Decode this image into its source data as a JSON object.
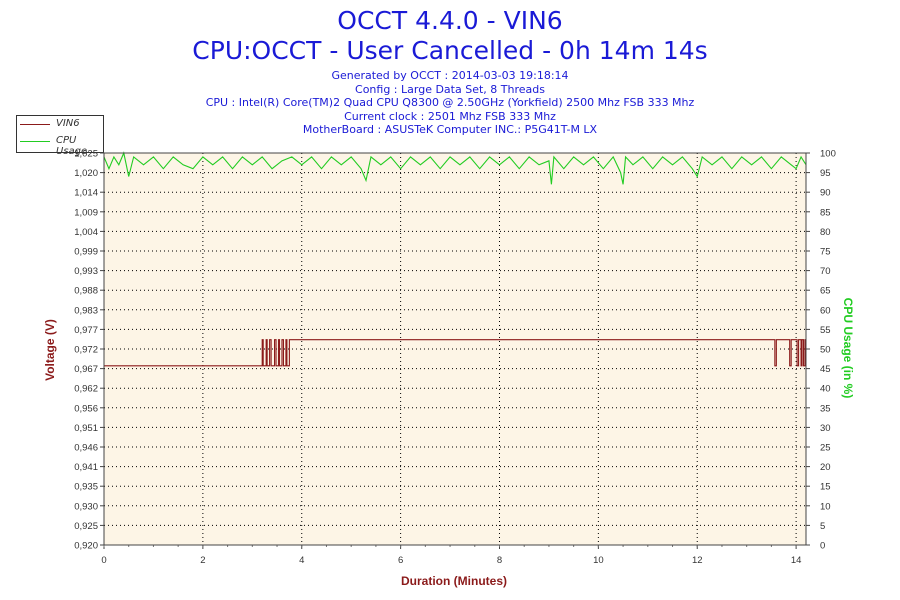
{
  "header": {
    "title": "OCCT 4.4.0 - VIN6",
    "subtitle": "CPU:OCCT - User Cancelled - 0h 14m 14s",
    "info_lines": [
      "Generated by OCCT : 2014-03-03 19:18:14",
      "Config : Large Data Set, 8 Threads",
      "CPU : Intel(R) Core(TM)2 Quad CPU Q8300 @ 2.50GHz (Yorkfield) 2500 Mhz FSB 333 Mhz",
      "Current clock : 2501 Mhz FSB 333 Mhz",
      "MotherBoard : ASUSTeK Computer INC.: P5G41T-M LX"
    ]
  },
  "colors": {
    "voltage": "#8b1a1a",
    "cpu": "#22cc22",
    "plot_bg": "#fdf5e6",
    "grid": "#000000",
    "title": "#1a1ad6"
  },
  "chart_data": {
    "type": "line",
    "xlabel": "Duration (Minutes)",
    "ylabel_left": "Voltage (V)",
    "ylabel_right": "CPU Usage (in %)",
    "xlim": [
      0,
      14.2
    ],
    "x_ticks": [
      "0",
      "2",
      "4",
      "6",
      "8",
      "10",
      "12",
      "14"
    ],
    "y_left_ticks": [
      "0,920",
      "0,925",
      "0,930",
      "0,935",
      "0,941",
      "0,946",
      "0,951",
      "0,956",
      "0,962",
      "0,967",
      "0,972",
      "0,977",
      "0,983",
      "0,988",
      "0,993",
      "0,999",
      "1,004",
      "1,009",
      "1,014",
      "1,020",
      "1,025"
    ],
    "ylim_left": [
      0.92,
      1.025
    ],
    "y_right_ticks": [
      "0",
      "5",
      "10",
      "15",
      "20",
      "25",
      "30",
      "35",
      "40",
      "45",
      "50",
      "55",
      "60",
      "65",
      "70",
      "75",
      "80",
      "85",
      "90",
      "95",
      "100"
    ],
    "ylim_right": [
      0,
      100
    ],
    "legend": [
      "VIN6",
      "CPU Usage"
    ],
    "series": [
      {
        "name": "VIN6",
        "axis": "left",
        "points": [
          [
            0,
            0.968
          ],
          [
            3.15,
            0.968
          ],
          [
            3.2,
            0.975
          ],
          [
            3.22,
            0.968
          ],
          [
            3.28,
            0.975
          ],
          [
            3.3,
            0.968
          ],
          [
            3.35,
            0.975
          ],
          [
            3.38,
            0.968
          ],
          [
            3.45,
            0.975
          ],
          [
            3.48,
            0.968
          ],
          [
            3.53,
            0.975
          ],
          [
            3.55,
            0.968
          ],
          [
            3.6,
            0.975
          ],
          [
            3.63,
            0.968
          ],
          [
            3.68,
            0.975
          ],
          [
            3.7,
            0.968
          ],
          [
            3.75,
            0.975
          ],
          [
            3.78,
            0.975
          ],
          [
            13.55,
            0.975
          ],
          [
            13.57,
            0.968
          ],
          [
            13.6,
            0.975
          ],
          [
            13.85,
            0.975
          ],
          [
            13.87,
            0.968
          ],
          [
            13.9,
            0.975
          ],
          [
            14.0,
            0.975
          ],
          [
            14.02,
            0.968
          ],
          [
            14.05,
            0.975
          ],
          [
            14.1,
            0.968
          ],
          [
            14.12,
            0.975
          ],
          [
            14.15,
            0.968
          ],
          [
            14.18,
            0.975
          ],
          [
            14.2,
            0.975
          ]
        ]
      },
      {
        "name": "CPU Usage",
        "axis": "right",
        "points": [
          [
            0,
            99
          ],
          [
            0.1,
            96
          ],
          [
            0.2,
            99
          ],
          [
            0.3,
            97
          ],
          [
            0.4,
            100
          ],
          [
            0.5,
            94
          ],
          [
            0.6,
            99
          ],
          [
            0.8,
            97
          ],
          [
            1.0,
            99
          ],
          [
            1.2,
            96
          ],
          [
            1.4,
            99
          ],
          [
            1.6,
            97
          ],
          [
            1.8,
            96
          ],
          [
            2.0,
            99
          ],
          [
            2.2,
            97
          ],
          [
            2.4,
            99
          ],
          [
            2.6,
            96
          ],
          [
            2.8,
            99
          ],
          [
            3.0,
            97
          ],
          [
            3.2,
            99
          ],
          [
            3.4,
            96
          ],
          [
            3.6,
            98
          ],
          [
            3.8,
            99
          ],
          [
            4.0,
            97
          ],
          [
            4.2,
            99
          ],
          [
            4.4,
            96
          ],
          [
            4.6,
            99
          ],
          [
            4.8,
            97
          ],
          [
            5.0,
            99
          ],
          [
            5.2,
            96
          ],
          [
            5.3,
            93
          ],
          [
            5.4,
            99
          ],
          [
            5.6,
            97
          ],
          [
            5.8,
            99
          ],
          [
            6.0,
            96
          ],
          [
            6.2,
            99
          ],
          [
            6.4,
            97
          ],
          [
            6.6,
            99
          ],
          [
            6.8,
            96
          ],
          [
            7.0,
            99
          ],
          [
            7.2,
            97
          ],
          [
            7.4,
            99
          ],
          [
            7.6,
            96
          ],
          [
            7.8,
            99
          ],
          [
            8.0,
            97
          ],
          [
            8.2,
            99
          ],
          [
            8.4,
            96
          ],
          [
            8.6,
            99
          ],
          [
            8.8,
            97
          ],
          [
            9.0,
            98
          ],
          [
            9.05,
            92
          ],
          [
            9.1,
            99
          ],
          [
            9.3,
            96
          ],
          [
            9.5,
            99
          ],
          [
            9.7,
            97
          ],
          [
            9.9,
            99
          ],
          [
            10.1,
            96
          ],
          [
            10.3,
            99
          ],
          [
            10.45,
            95
          ],
          [
            10.5,
            92
          ],
          [
            10.55,
            99
          ],
          [
            10.7,
            97
          ],
          [
            10.9,
            99
          ],
          [
            11.1,
            96
          ],
          [
            11.3,
            99
          ],
          [
            11.5,
            97
          ],
          [
            11.7,
            99
          ],
          [
            11.9,
            96
          ],
          [
            12.0,
            94
          ],
          [
            12.1,
            99
          ],
          [
            12.3,
            97
          ],
          [
            12.5,
            99
          ],
          [
            12.7,
            96
          ],
          [
            12.9,
            99
          ],
          [
            13.1,
            97
          ],
          [
            13.3,
            99
          ],
          [
            13.5,
            96
          ],
          [
            13.7,
            99
          ],
          [
            13.9,
            97
          ],
          [
            14.0,
            96
          ],
          [
            14.1,
            99
          ],
          [
            14.2,
            97
          ]
        ]
      }
    ]
  }
}
